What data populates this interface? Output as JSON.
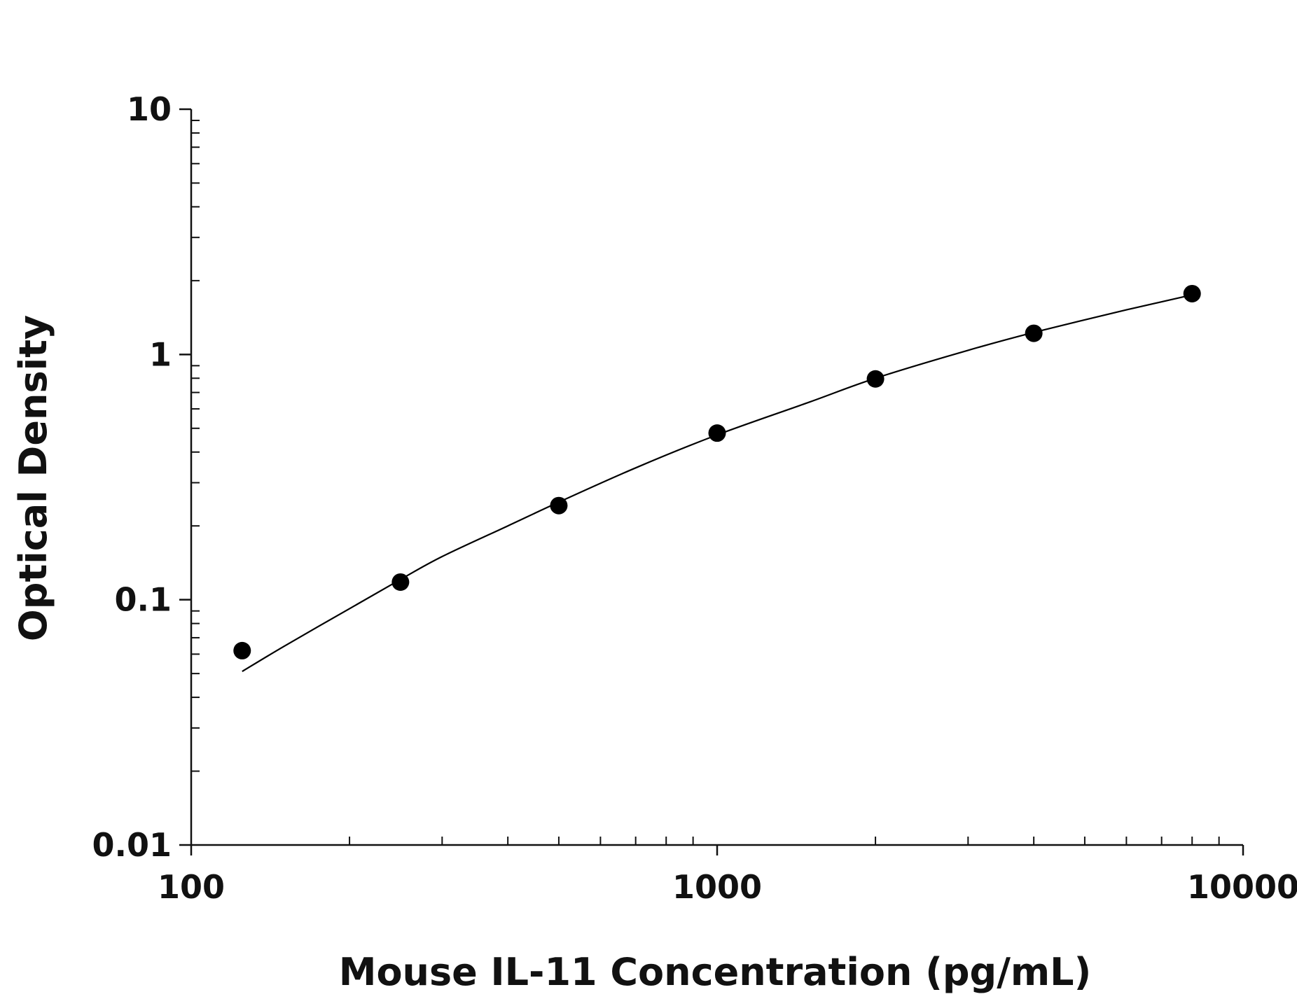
{
  "chart_data": {
    "type": "scatter",
    "title": "",
    "xlabel": "Mouse IL-11 Concentration (pg/mL)",
    "ylabel": "Optical Density",
    "x_scale": "log",
    "y_scale": "log",
    "xlim": [
      100,
      10000
    ],
    "ylim": [
      0.01,
      10
    ],
    "x_ticks": [
      "100",
      "1000",
      "10000"
    ],
    "y_ticks": [
      "10",
      "1",
      "0.1",
      "0.01"
    ],
    "grid": false,
    "legend": "none",
    "series": [
      {
        "x": [
          125,
          250,
          500,
          1000,
          2000,
          4000,
          8000
        ],
        "y": [
          0.062,
          0.118,
          0.242,
          0.478,
          0.795,
          1.22,
          1.77
        ]
      }
    ],
    "fit_curve": {
      "type": "curve",
      "x": [
        125,
        150,
        200,
        250,
        300,
        400,
        500,
        700,
        1000,
        1500,
        2000,
        3000,
        4000,
        6000,
        8000
      ],
      "y": [
        0.051,
        0.0645,
        0.092,
        0.121,
        0.15,
        0.2,
        0.25,
        0.345,
        0.47,
        0.64,
        0.8,
        1.04,
        1.23,
        1.52,
        1.75
      ]
    },
    "marker_color": "#000000",
    "line_color": "#000000"
  }
}
